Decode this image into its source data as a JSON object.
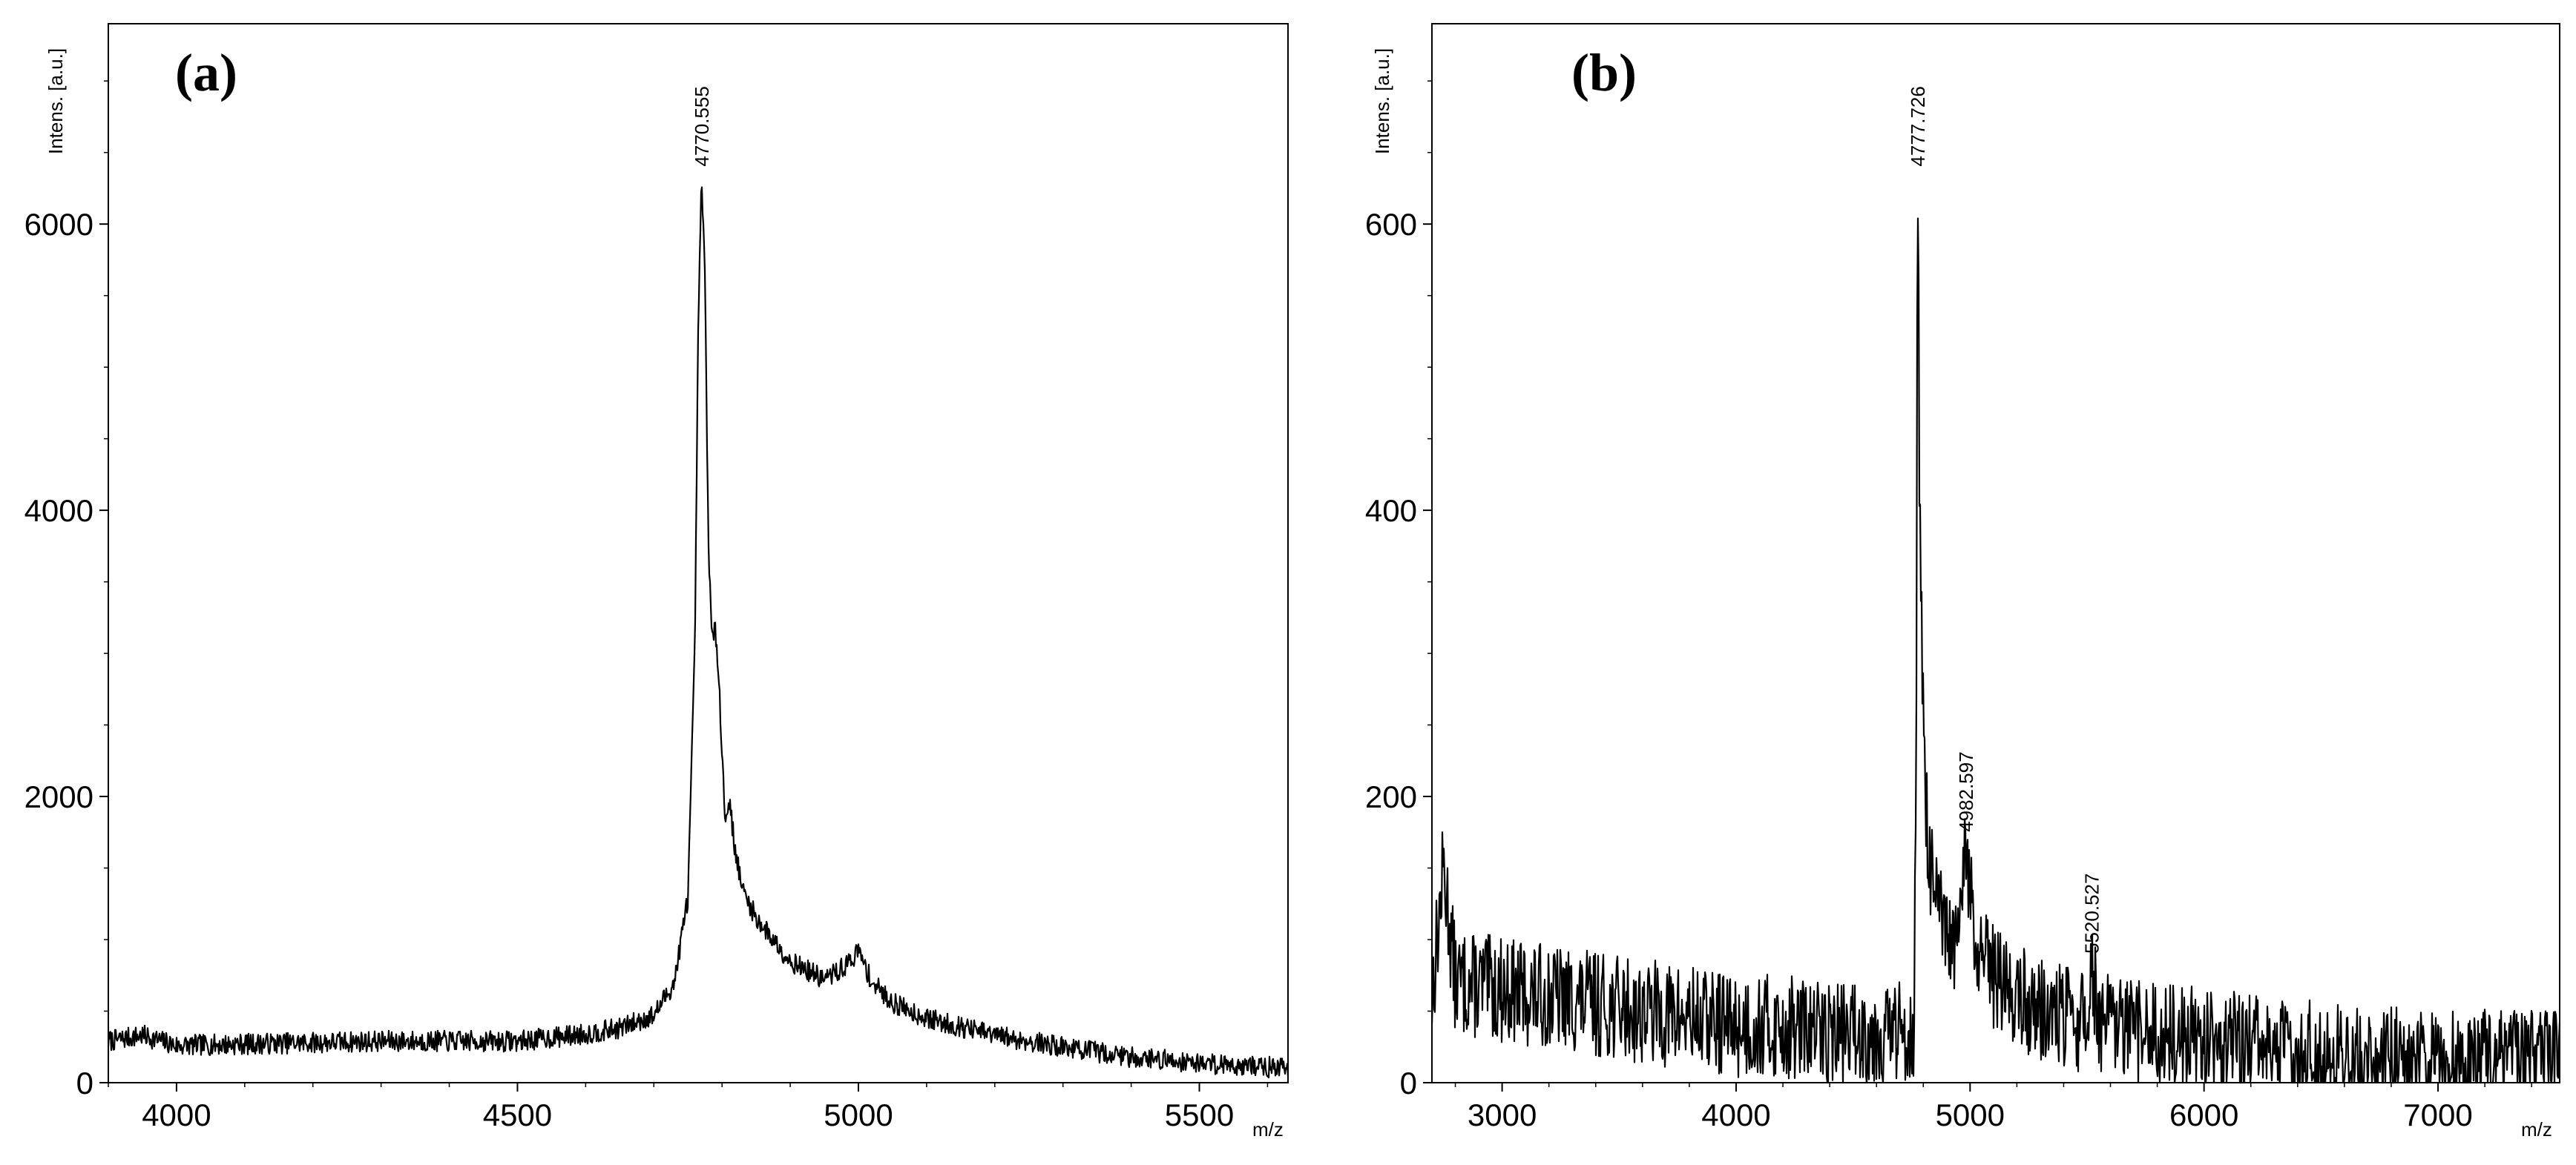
{
  "chart_data": [
    {
      "type": "line",
      "panel_label": "(a)",
      "xlabel": "m/z",
      "ylabel": "Intens. [a.u.]",
      "xlim": [
        3900,
        5630
      ],
      "ylim": [
        0,
        7400
      ],
      "xticks": [
        4000,
        4500,
        5000,
        5500
      ],
      "xtick_labels": [
        "4000",
        "4500",
        "5000",
        "5500"
      ],
      "yticks": [
        0,
        2000,
        4000,
        6000
      ],
      "ytick_labels": [
        "0",
        "2000",
        "4000",
        "6000"
      ],
      "grid": false,
      "series": [
        {
          "x": [
            3900,
            3950,
            4000,
            4100,
            4200,
            4300,
            4400,
            4500,
            4600,
            4650,
            4700,
            4730,
            4750,
            4760,
            4765,
            4770,
            4775,
            4780,
            4785,
            4790,
            4795,
            4800,
            4805,
            4810,
            4820,
            4830,
            4850,
            4900,
            4950,
            4980,
            5000,
            5020,
            5050,
            5100,
            5200,
            5300,
            5400,
            5500,
            5630
          ],
          "y": [
            290,
            330,
            260,
            270,
            280,
            290,
            290,
            290,
            340,
            380,
            470,
            700,
            1300,
            3000,
            5200,
            6350,
            5600,
            3800,
            3100,
            3150,
            2900,
            2300,
            1800,
            2000,
            1600,
            1350,
            1150,
            850,
            720,
            810,
            920,
            700,
            560,
            450,
            330,
            250,
            180,
            140,
            100
          ]
        }
      ],
      "annotations": [
        {
          "text": "4770.555",
          "x": 4770.555,
          "y": 6350
        }
      ]
    },
    {
      "type": "line",
      "panel_label": "(b)",
      "xlabel": "m/z",
      "ylabel": "Intens. [a.u.]",
      "xlim": [
        2700,
        7520
      ],
      "ylim": [
        0,
        740
      ],
      "xticks": [
        3000,
        4000,
        5000,
        6000,
        7000
      ],
      "xtick_labels": [
        "3000",
        "4000",
        "5000",
        "6000",
        "7000"
      ],
      "yticks": [
        0,
        200,
        400,
        600
      ],
      "ytick_labels": [
        "0",
        "200",
        "400",
        "600"
      ],
      "grid": false,
      "series": [
        {
          "x": [
            2700,
            2750,
            2800,
            3000,
            3200,
            3400,
            3600,
            3800,
            4000,
            4200,
            4400,
            4600,
            4700,
            4760,
            4770,
            4775,
            4778,
            4782,
            4790,
            4800,
            4815,
            4830,
            4860,
            4900,
            4950,
            4982.597,
            5020,
            5100,
            5200,
            5300,
            5400,
            5500,
            5520.527,
            5550,
            5700,
            6000,
            6500,
            7000,
            7520
          ],
          "y": [
            60,
            150,
            70,
            65,
            60,
            55,
            50,
            45,
            40,
            38,
            35,
            35,
            35,
            40,
            200,
            600,
            635,
            450,
            320,
            280,
            180,
            150,
            120,
            100,
            90,
            170,
            90,
            75,
            60,
            50,
            45,
            42,
            85,
            40,
            35,
            30,
            20,
            15,
            15
          ]
        }
      ],
      "annotations": [
        {
          "text": "4777.726",
          "x": 4777.726,
          "y": 635
        },
        {
          "text": "4982.597",
          "x": 4982.597,
          "y": 170
        },
        {
          "text": "5520.527",
          "x": 5520.527,
          "y": 85
        }
      ]
    }
  ]
}
